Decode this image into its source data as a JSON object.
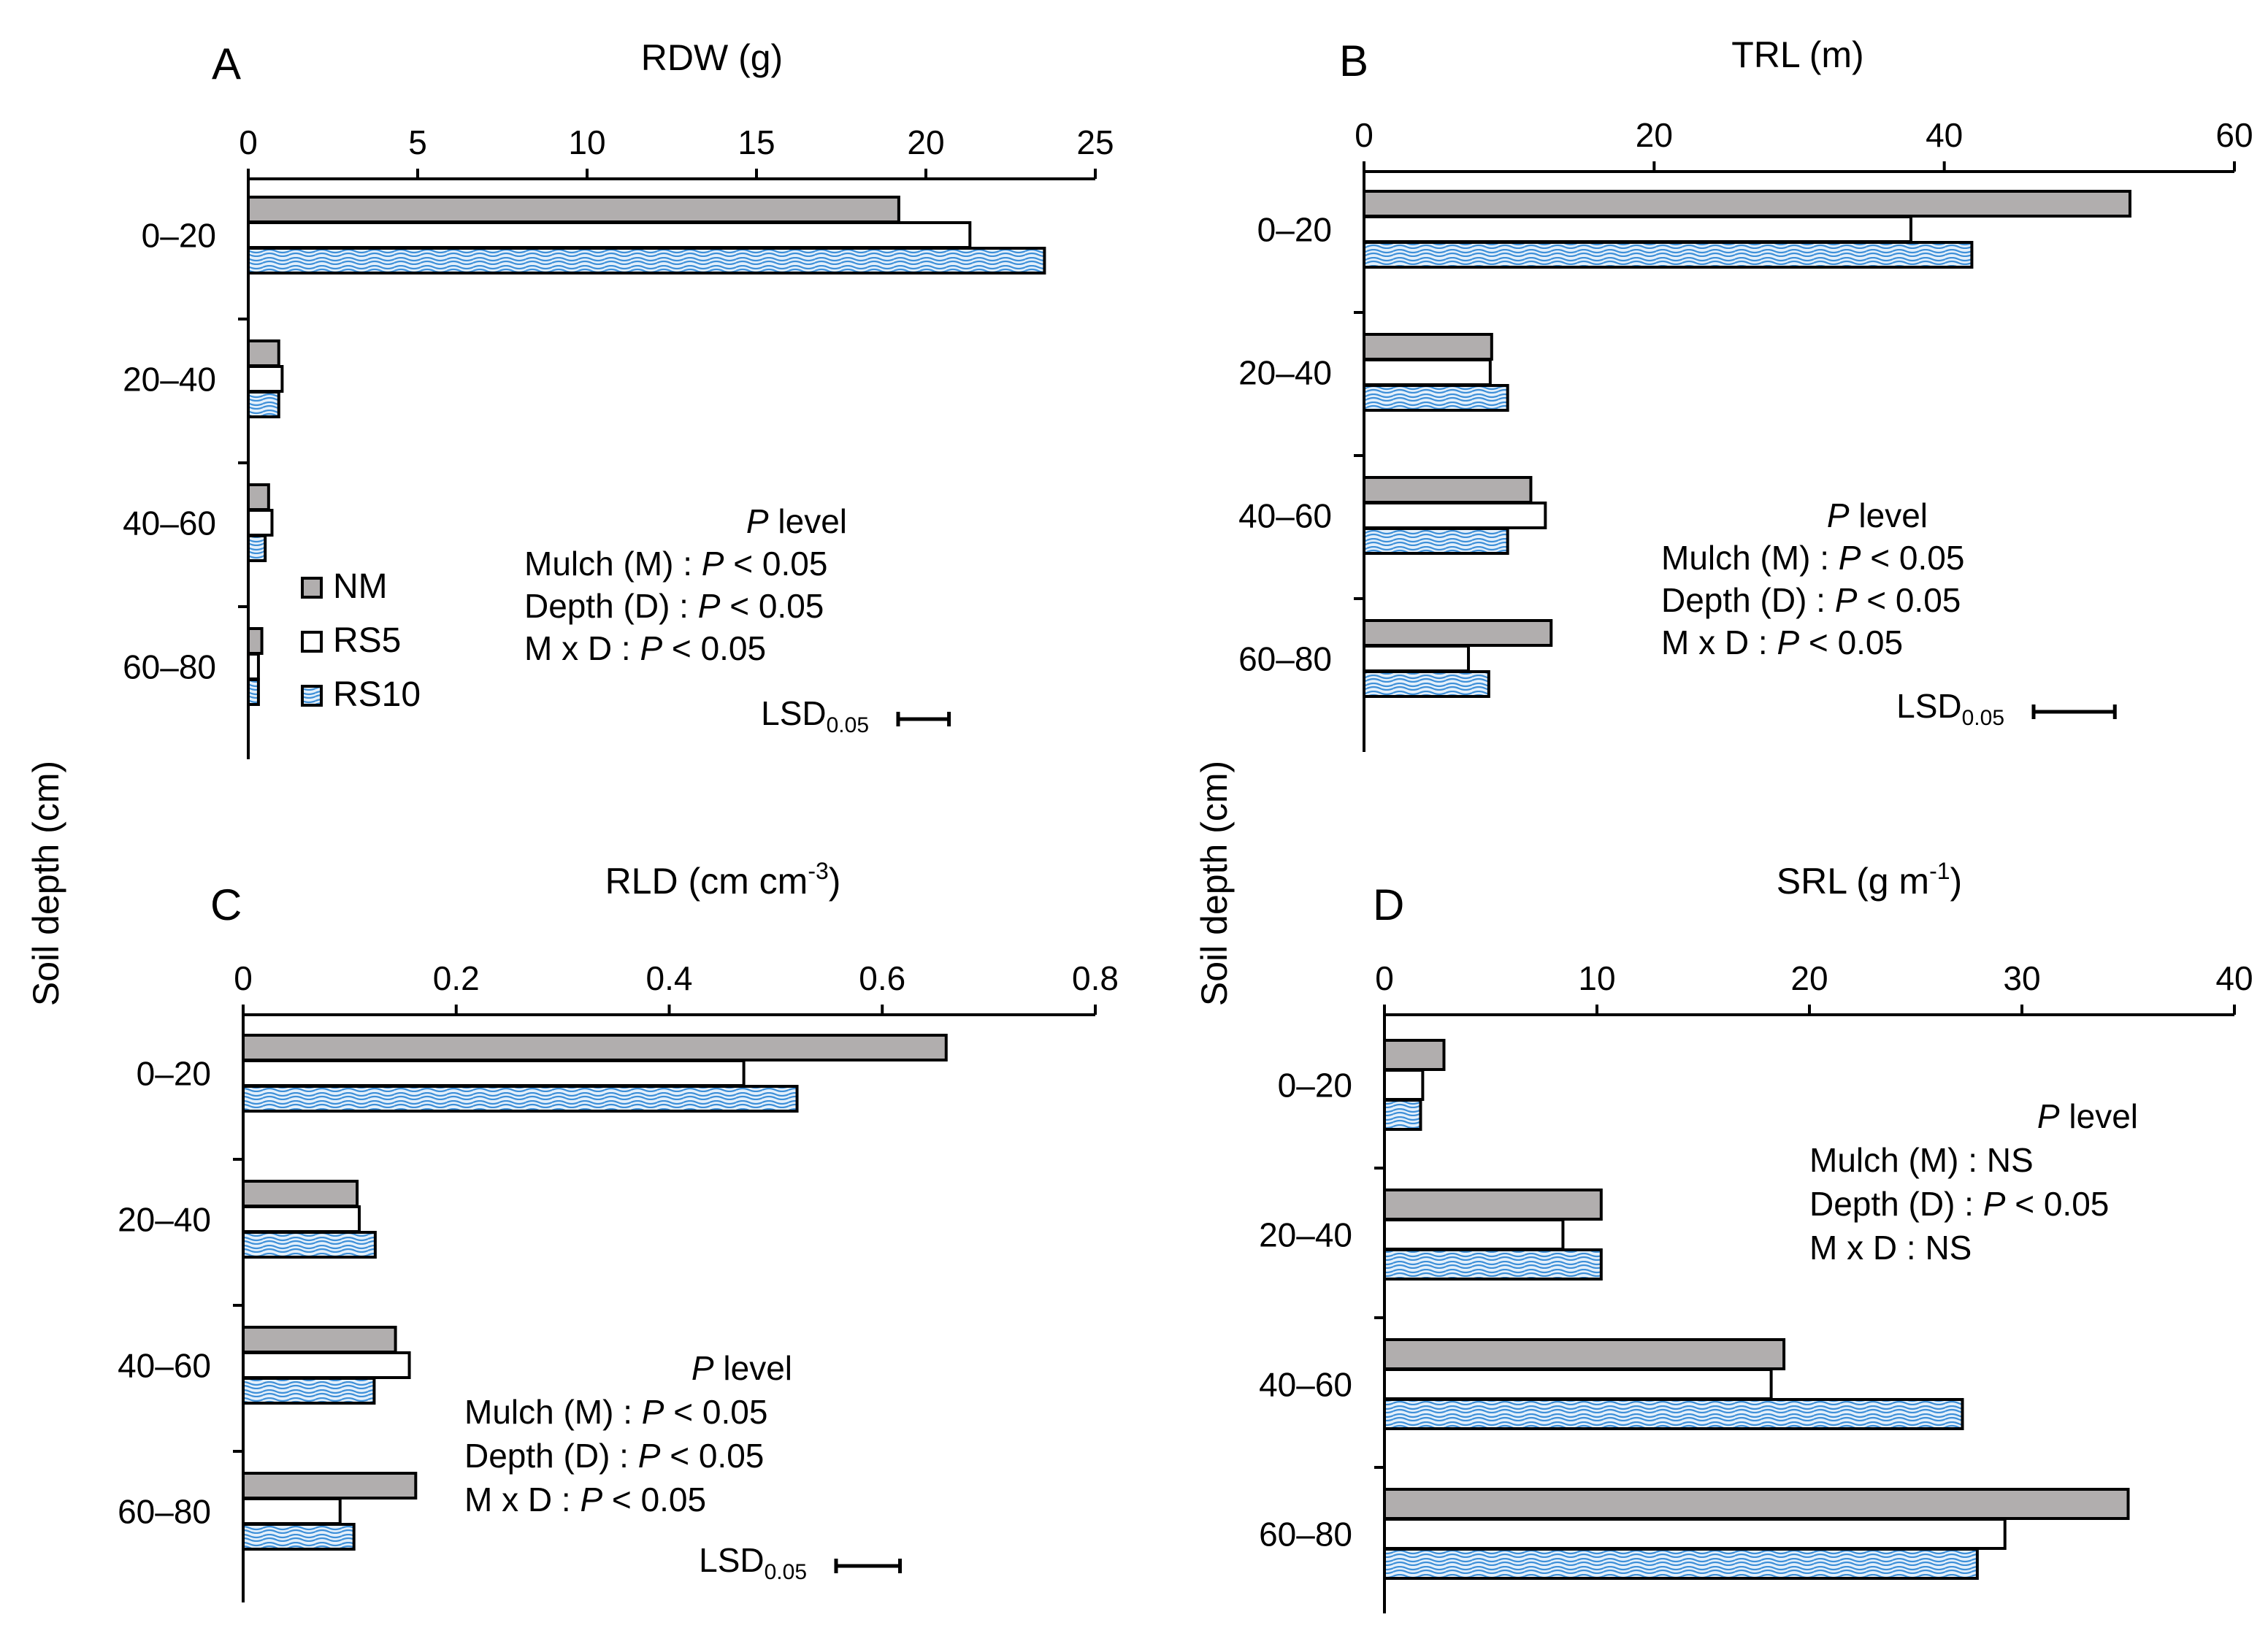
{
  "y_axis_title": "Soil depth (cm)",
  "colors": {
    "NM": "#b1aeae",
    "RS5": "#ffffff",
    "RS10": "#e4f0fb",
    "RS10_wave": "#3d8fd8"
  },
  "legend": [
    {
      "key": "NM",
      "label": "NM"
    },
    {
      "key": "RS5",
      "label": "RS5"
    },
    {
      "key": "RS10",
      "label": "RS10"
    }
  ],
  "chart_data": [
    {
      "type": "bar",
      "panel": "A",
      "title": "RDW (g)",
      "categories": [
        "0–20",
        "20–40",
        "40–60",
        "60–80"
      ],
      "series": [
        {
          "name": "NM",
          "values": [
            19.2,
            0.9,
            0.6,
            0.4
          ]
        },
        {
          "name": "RS5",
          "values": [
            21.3,
            1.0,
            0.7,
            0.3
          ]
        },
        {
          "name": "RS10",
          "values": [
            23.5,
            0.9,
            0.5,
            0.3
          ]
        }
      ],
      "xlim": [
        0,
        25
      ],
      "xticks": [
        0,
        5,
        10,
        15,
        20,
        25
      ],
      "tick_labels": [
        "0",
        "5",
        "10",
        "15",
        "20",
        "25"
      ],
      "lsd_value": 1.5,
      "stats": {
        "heading_italic": "P",
        "heading_rest": " level",
        "rows": [
          {
            "label": "Mulch (M) : ",
            "italic": "P",
            "value": " < 0.05"
          },
          {
            "label": "Depth (D) : ",
            "italic": "P",
            "value": " < 0.05"
          },
          {
            "label": "M x D       : ",
            "italic": "P",
            "value": " < 0.05"
          }
        ],
        "lsd_label": "LSD",
        "lsd_sub": "0.05"
      }
    },
    {
      "type": "bar",
      "panel": "B",
      "title": "TRL (m)",
      "categories": [
        "0–20",
        "20–40",
        "40–60",
        "60–80"
      ],
      "series": [
        {
          "name": "NM",
          "values": [
            52.8,
            8.8,
            11.5,
            12.9
          ]
        },
        {
          "name": "RS5",
          "values": [
            37.7,
            8.7,
            12.5,
            7.2
          ]
        },
        {
          "name": "RS10",
          "values": [
            41.9,
            9.9,
            9.9,
            8.6
          ]
        }
      ],
      "xlim": [
        0,
        60
      ],
      "xticks": [
        0,
        20,
        40,
        60
      ],
      "tick_labels": [
        "0",
        "20",
        "40",
        "60"
      ],
      "lsd_value": 5.6,
      "stats": {
        "heading_italic": "P",
        "heading_rest": " level",
        "rows": [
          {
            "label": "Mulch (M) : ",
            "italic": "P",
            "value": " < 0.05"
          },
          {
            "label": "Depth (D) : ",
            "italic": "P",
            "value": " < 0.05"
          },
          {
            "label": "M x D       : ",
            "italic": "P",
            "value": " < 0.05"
          }
        ],
        "lsd_label": "LSD",
        "lsd_sub": "0.05"
      }
    },
    {
      "type": "bar",
      "panel": "C",
      "title_main": "RLD (cm cm",
      "title_sup": "-3",
      "title_end": ")",
      "categories": [
        "0–20",
        "20–40",
        "40–60",
        "60–80"
      ],
      "series": [
        {
          "name": "NM",
          "values": [
            0.66,
            0.107,
            0.143,
            0.162
          ]
        },
        {
          "name": "RS5",
          "values": [
            0.47,
            0.109,
            0.156,
            0.091
          ]
        },
        {
          "name": "RS10",
          "values": [
            0.52,
            0.124,
            0.123,
            0.104
          ]
        }
      ],
      "xlim": [
        0,
        0.8
      ],
      "xticks": [
        0,
        0.2,
        0.4,
        0.6,
        0.8
      ],
      "tick_labels": [
        "0",
        "0.2",
        "0.4",
        "0.6",
        "0.8"
      ],
      "lsd_value": 0.06,
      "stats": {
        "heading_italic": "P",
        "heading_rest": " level",
        "rows": [
          {
            "label": "Mulch (M) : ",
            "italic": "P",
            "value": " < 0.05"
          },
          {
            "label": "Depth (D) : ",
            "italic": "P",
            "value": " < 0.05"
          },
          {
            "label": "M x D       : ",
            "italic": "P",
            "value": " < 0.05"
          }
        ],
        "lsd_label": "LSD",
        "lsd_sub": "0.05"
      }
    },
    {
      "type": "bar",
      "panel": "D",
      "title_main": "SRL (g m",
      "title_sup": "-1",
      "title_end": ")",
      "categories": [
        "0–20",
        "20–40",
        "40–60",
        "60–80"
      ],
      "series": [
        {
          "name": "NM",
          "values": [
            2.8,
            10.2,
            18.8,
            35.0
          ]
        },
        {
          "name": "RS5",
          "values": [
            1.8,
            8.4,
            18.2,
            29.2
          ]
        },
        {
          "name": "RS10",
          "values": [
            1.7,
            10.2,
            27.2,
            27.9
          ]
        }
      ],
      "xlim": [
        0,
        40
      ],
      "xticks": [
        0,
        10,
        20,
        30,
        40
      ],
      "tick_labels": [
        "0",
        "10",
        "20",
        "30",
        "40"
      ],
      "stats": {
        "heading_italic": "P",
        "heading_rest": " level",
        "rows": [
          {
            "label": "Mulch (M) : ",
            "italic": "",
            "value": "NS"
          },
          {
            "label": "Depth (D) : ",
            "italic": "P",
            "value": " < 0.05"
          },
          {
            "label": "M x D       : ",
            "italic": "",
            "value": "NS"
          }
        ]
      }
    }
  ]
}
